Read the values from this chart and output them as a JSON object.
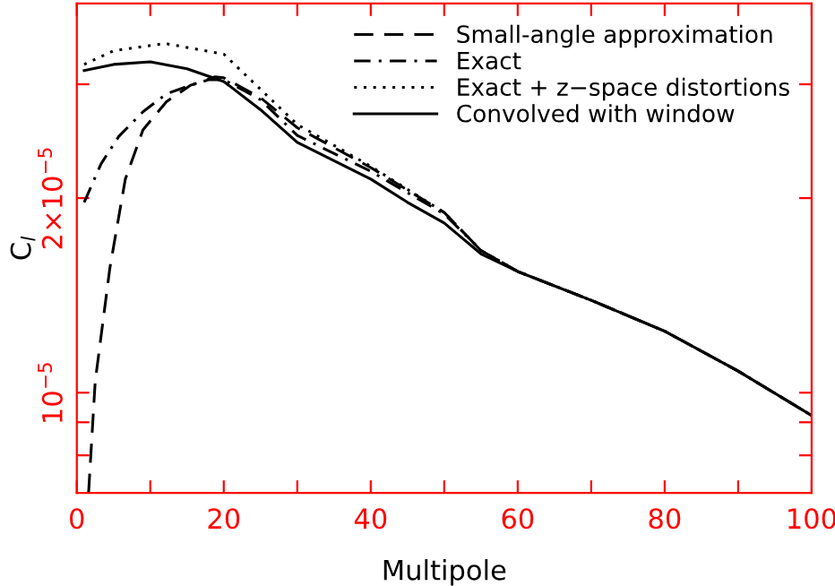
{
  "chart_data": {
    "type": "line",
    "xlabel": "Multipole",
    "ylabel": "C$_{l}$",
    "log": "y",
    "xlim": [
      0,
      100
    ],
    "xticks": [
      0,
      {
        "value": 10,
        "label": null
      },
      20,
      {
        "value": 30,
        "label": null
      },
      40,
      {
        "value": 50,
        "label": null
      },
      60,
      {
        "value": 70,
        "label": null
      },
      80,
      {
        "value": 90,
        "label": null
      },
      100
    ],
    "ylim": [
      7e-06,
      4e-05
    ],
    "yticks": [
      {
        "value": 8e-06,
        "label": null
      },
      {
        "value": 9e-06,
        "label": null
      },
      {
        "value": 1e-05,
        "label": "10$^{−5}$"
      },
      {
        "value": 2e-05,
        "label": "2×10$^{−5}$"
      },
      {
        "value": 3e-05,
        "label": null
      }
    ],
    "grid": false,
    "legend": "top right",
    "marker": "none",
    "series": [
      {
        "name": "Small-angle approximation",
        "color": "#000000",
        "line_style": "dashed",
        "x": [
          1.6,
          2.5,
          4.5,
          6.6,
          9,
          12.2,
          15.5,
          18.8,
          20,
          25,
          30,
          40,
          50,
          55,
          60,
          70,
          80,
          90,
          100
        ],
        "values": [
          7e-06,
          1.04e-05,
          1.56e-05,
          2.14e-05,
          2.55e-05,
          2.82e-05,
          2.99e-05,
          3.08e-05,
          3.07e-05,
          2.86e-05,
          2.57e-05,
          2.23e-05,
          1.9e-05,
          1.66e-05,
          1.54e-05,
          1.39e-05,
          1.245e-05,
          1.08e-05,
          9.22e-06
        ]
      },
      {
        "name": "Exact",
        "color": "#000000",
        "line_style": "dashdot",
        "x": [
          1,
          3.3,
          5.7,
          9,
          12.2,
          15.5,
          18,
          20,
          25,
          30,
          40,
          50,
          55,
          60,
          70,
          80,
          90,
          100
        ],
        "values": [
          1.97e-05,
          2.26e-05,
          2.49e-05,
          2.72e-05,
          2.9e-05,
          2.99e-05,
          3.05e-05,
          3.05e-05,
          2.84e-05,
          2.5e-05,
          2.2e-05,
          1.89e-05,
          1.66e-05,
          1.54e-05,
          1.39e-05,
          1.245e-05,
          1.08e-05,
          9.22e-06
        ]
      },
      {
        "name": "Exact + z−space distortions",
        "color": "#000000",
        "line_style": "dotted",
        "x": [
          1,
          5,
          12,
          20,
          30,
          40,
          50,
          55,
          60,
          70,
          80,
          90,
          100
        ],
        "values": [
          3.22e-05,
          3.38e-05,
          3.47e-05,
          3.34e-05,
          2.6e-05,
          2.24e-05,
          1.9e-05,
          1.66e-05,
          1.54e-05,
          1.39e-05,
          1.245e-05,
          1.08e-05,
          9.22e-06
        ]
      },
      {
        "name": "Convolved with window",
        "color": "#000000",
        "line_style": "solid",
        "x": [
          1,
          5,
          10,
          15,
          20,
          25,
          30,
          40,
          45,
          50,
          55,
          60,
          70,
          80,
          90,
          100
        ],
        "values": [
          3.15e-05,
          3.22e-05,
          3.25e-05,
          3.17e-05,
          3.03e-05,
          2.74e-05,
          2.44e-05,
          2.14e-05,
          1.97e-05,
          1.83e-05,
          1.64e-05,
          1.54e-05,
          1.39e-05,
          1.245e-05,
          1.08e-05,
          9.22e-06
        ]
      }
    ]
  }
}
